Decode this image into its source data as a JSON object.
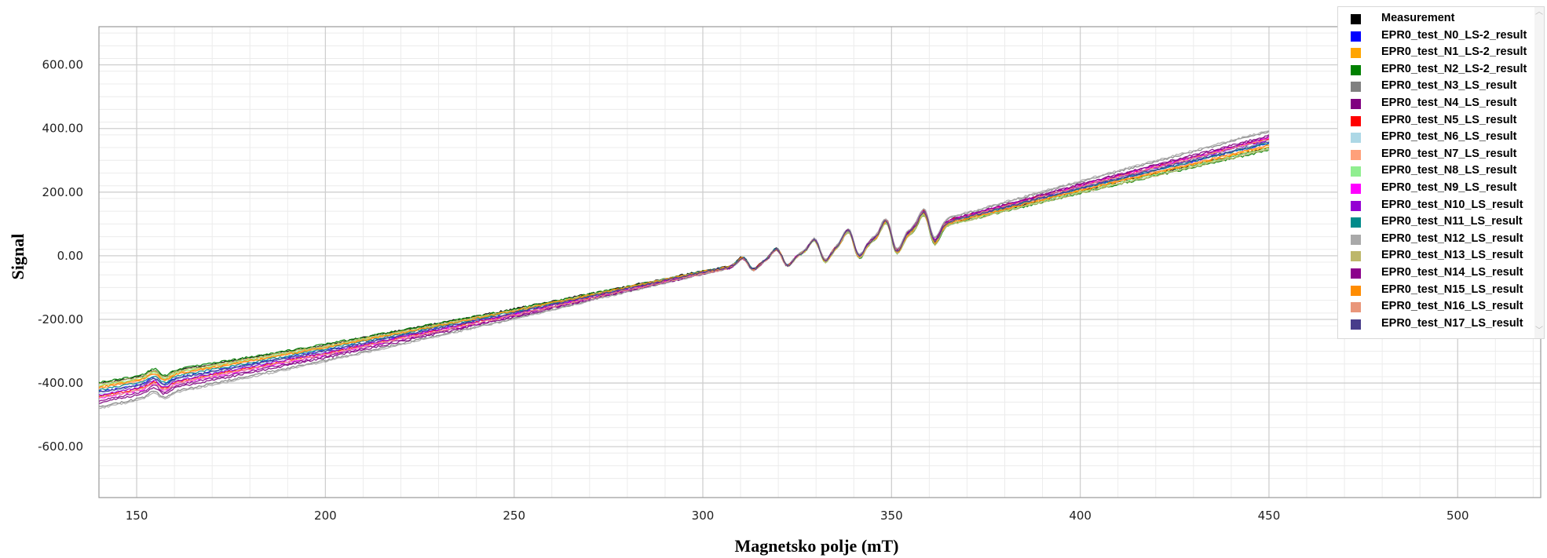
{
  "chart_data": {
    "type": "line",
    "title": "",
    "xlabel": "Magnetsko polje (mT)",
    "ylabel": "Signal",
    "xlim": [
      140,
      522
    ],
    "ylim": [
      -760,
      720
    ],
    "x_ticks": [
      150,
      200,
      250,
      300,
      350,
      400,
      450,
      500
    ],
    "y_ticks": [
      -600,
      -400,
      -200,
      0,
      200,
      400,
      600
    ],
    "x_tick_labels": [
      "150",
      "200",
      "250",
      "300",
      "350",
      "400",
      "450",
      "500"
    ],
    "y_tick_labels": [
      "-600.00",
      "-400.00",
      "-200.00",
      "0.00",
      "200.00",
      "400.00",
      "600.00"
    ],
    "x_range": [
      140,
      450
    ],
    "grid": true,
    "legend_position": "top-right",
    "baseline_points": [
      [
        140,
        -420
      ],
      [
        200,
        -292
      ],
      [
        250,
        -175
      ],
      [
        300,
        -50
      ],
      [
        350,
        60
      ],
      [
        400,
        210
      ],
      [
        450,
        352
      ]
    ],
    "peaks": [
      {
        "x": 156,
        "amp": 14
      },
      {
        "x": 312,
        "amp": 22
      },
      {
        "x": 321,
        "amp": 30
      },
      {
        "x": 331,
        "amp": 38
      },
      {
        "x": 340,
        "amp": 46
      },
      {
        "x": 350,
        "amp": 54
      },
      {
        "x": 360,
        "amp": 52
      }
    ],
    "series": [
      {
        "name": "Measurement",
        "color": "#000000",
        "offset_start": 18,
        "offset_end": -12
      },
      {
        "name": "EPR0_test_N0_LS-2_result",
        "color": "#0000ff",
        "offset_start": -8,
        "offset_end": 2
      },
      {
        "name": "EPR0_test_N1_LS-2_result",
        "color": "#ffa500",
        "offset_start": 10,
        "offset_end": -10
      },
      {
        "name": "EPR0_test_N2_LS-2_result",
        "color": "#008000",
        "offset_start": 22,
        "offset_end": -20
      },
      {
        "name": "EPR0_test_N3_LS_result",
        "color": "#808080",
        "offset_start": -55,
        "offset_end": 38
      },
      {
        "name": "EPR0_test_N4_LS_result",
        "color": "#800080",
        "offset_start": -42,
        "offset_end": 26
      },
      {
        "name": "EPR0_test_N5_LS_result",
        "color": "#ff0000",
        "offset_start": -22,
        "offset_end": 16
      },
      {
        "name": "EPR0_test_N6_LS_result",
        "color": "#add8e6",
        "offset_start": -12,
        "offset_end": 8
      },
      {
        "name": "EPR0_test_N7_LS_result",
        "color": "#ffa07a",
        "offset_start": 4,
        "offset_end": -4
      },
      {
        "name": "EPR0_test_N8_LS_result",
        "color": "#90ee90",
        "offset_start": 12,
        "offset_end": -14
      },
      {
        "name": "EPR0_test_N9_LS_result",
        "color": "#ff00ff",
        "offset_start": -28,
        "offset_end": 18
      },
      {
        "name": "EPR0_test_N10_LS_result",
        "color": "#9400d3",
        "offset_start": -18,
        "offset_end": 12
      },
      {
        "name": "EPR0_test_N11_LS_result",
        "color": "#008b8b",
        "offset_start": -2,
        "offset_end": 2
      },
      {
        "name": "EPR0_test_N12_LS_result",
        "color": "#a9a9a9",
        "offset_start": -60,
        "offset_end": 42
      },
      {
        "name": "EPR0_test_N13_LS_result",
        "color": "#bdb76b",
        "offset_start": 16,
        "offset_end": -18
      },
      {
        "name": "EPR0_test_N14_LS_result",
        "color": "#8b008b",
        "offset_start": -35,
        "offset_end": 22
      },
      {
        "name": "EPR0_test_N15_LS_result",
        "color": "#ff8c00",
        "offset_start": 6,
        "offset_end": -6
      },
      {
        "name": "EPR0_test_N16_LS_result",
        "color": "#e9967a",
        "offset_start": -26,
        "offset_end": 14
      },
      {
        "name": "EPR0_test_N17_LS_result",
        "color": "#483d8b",
        "offset_start": -10,
        "offset_end": 6
      }
    ]
  }
}
